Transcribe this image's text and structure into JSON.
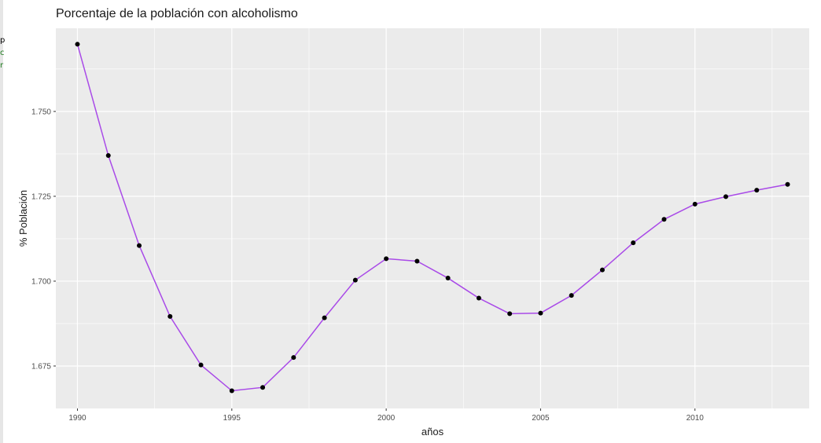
{
  "chart_data": {
    "type": "line",
    "title": "Porcentaje de la población con alcoholismo",
    "xlabel": "años",
    "ylabel": "% Población",
    "x": [
      1990,
      1991,
      1992,
      1993,
      1994,
      1995,
      1996,
      1997,
      1998,
      1999,
      2000,
      2001,
      2002,
      2003,
      2004,
      2005,
      2006,
      2007,
      2008,
      2009,
      2010,
      2011,
      2012,
      2013
    ],
    "series": [
      {
        "values": [
          1.7698,
          1.737,
          1.7105,
          1.6896,
          1.6753,
          1.6677,
          1.6687,
          1.6775,
          1.6892,
          1.7003,
          1.7066,
          1.7059,
          1.7009,
          1.695,
          1.6904,
          1.6906,
          1.6958,
          1.7033,
          1.7113,
          1.7182,
          1.7227,
          1.7249,
          1.7268,
          1.7285
        ],
        "color": "#a94ae8"
      }
    ],
    "xlim": [
      1989.3,
      2013.7
    ],
    "ylim": [
      1.6625,
      1.7745
    ],
    "x_ticks": [
      1990,
      1995,
      2000,
      2005,
      2010
    ],
    "x_tick_labels": [
      "1990",
      "1995",
      "2000",
      "2005",
      "2010"
    ],
    "y_ticks": [
      1.675,
      1.7,
      1.725,
      1.75
    ],
    "y_tick_labels": [
      "1.675",
      "1.700",
      "1.725",
      "1.750"
    ],
    "grid": true,
    "point_color": "#000000",
    "panel_background": "#ebebeb",
    "grid_color": "#ffffff"
  }
}
